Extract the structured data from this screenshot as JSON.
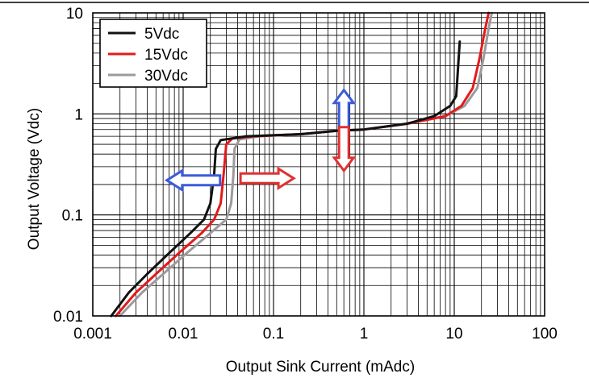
{
  "chart_data": {
    "type": "line",
    "xlabel": "Output Sink Current (mAdc)",
    "ylabel": "Output Voltage (Vdc)",
    "x_scale": "log",
    "y_scale": "log",
    "xlim": [
      0.001,
      100
    ],
    "ylim": [
      0.01,
      10
    ],
    "x_ticks": [
      {
        "value": 0.001,
        "label": "0.001"
      },
      {
        "value": 0.01,
        "label": "0.01"
      },
      {
        "value": 0.1,
        "label": "0.1"
      },
      {
        "value": 1,
        "label": "1"
      },
      {
        "value": 10,
        "label": "10"
      },
      {
        "value": 100,
        "label": "100"
      }
    ],
    "y_ticks": [
      {
        "value": 0.01,
        "label": "0.01"
      },
      {
        "value": 0.1,
        "label": "0.1"
      },
      {
        "value": 1,
        "label": "1"
      },
      {
        "value": 10,
        "label": "10"
      }
    ],
    "grid": true,
    "legend_position": "top-left",
    "series": [
      {
        "name": "5Vdc",
        "color": "#111111",
        "points": [
          [
            0.0016,
            0.01
          ],
          [
            0.0025,
            0.017
          ],
          [
            0.004,
            0.026
          ],
          [
            0.007,
            0.042
          ],
          [
            0.012,
            0.066
          ],
          [
            0.017,
            0.09
          ],
          [
            0.02,
            0.13
          ],
          [
            0.022,
            0.25
          ],
          [
            0.023,
            0.45
          ],
          [
            0.026,
            0.55
          ],
          [
            0.05,
            0.6
          ],
          [
            0.2,
            0.63
          ],
          [
            0.5,
            0.68
          ],
          [
            1,
            0.7
          ],
          [
            3,
            0.8
          ],
          [
            6,
            0.95
          ],
          [
            9,
            1.2
          ],
          [
            10.5,
            1.5
          ],
          [
            11.5,
            5.2
          ]
        ]
      },
      {
        "name": "15Vdc",
        "color": "#e31a1c",
        "points": [
          [
            0.0018,
            0.01
          ],
          [
            0.003,
            0.017
          ],
          [
            0.005,
            0.026
          ],
          [
            0.009,
            0.042
          ],
          [
            0.016,
            0.066
          ],
          [
            0.022,
            0.09
          ],
          [
            0.026,
            0.13
          ],
          [
            0.028,
            0.25
          ],
          [
            0.03,
            0.5
          ],
          [
            0.035,
            0.57
          ],
          [
            0.06,
            0.6
          ],
          [
            0.2,
            0.63
          ],
          [
            0.5,
            0.68
          ],
          [
            1,
            0.7
          ],
          [
            3,
            0.8
          ],
          [
            8,
            0.95
          ],
          [
            12,
            1.2
          ],
          [
            16,
            1.8
          ],
          [
            19,
            3.5
          ],
          [
            22,
            7
          ],
          [
            24,
            10
          ]
        ]
      },
      {
        "name": "30Vdc",
        "color": "#9b9b9b",
        "points": [
          [
            0.002,
            0.01
          ],
          [
            0.0035,
            0.017
          ],
          [
            0.006,
            0.026
          ],
          [
            0.011,
            0.042
          ],
          [
            0.02,
            0.066
          ],
          [
            0.03,
            0.09
          ],
          [
            0.034,
            0.13
          ],
          [
            0.036,
            0.25
          ],
          [
            0.037,
            0.45
          ],
          [
            0.042,
            0.56
          ],
          [
            0.07,
            0.6
          ],
          [
            0.2,
            0.63
          ],
          [
            0.5,
            0.68
          ],
          [
            1,
            0.7
          ],
          [
            3,
            0.8
          ],
          [
            8,
            0.95
          ],
          [
            13,
            1.2
          ],
          [
            18,
            1.8
          ],
          [
            21,
            3.5
          ],
          [
            24,
            7
          ],
          [
            26,
            10
          ]
        ]
      }
    ],
    "annotations": [
      {
        "type": "arrow",
        "direction": "left",
        "color": "#3b5bdb",
        "at": [
          0.013,
          0.22
        ]
      },
      {
        "type": "arrow",
        "direction": "right",
        "color": "#e03131",
        "at": [
          0.085,
          0.23
        ]
      },
      {
        "type": "arrow",
        "direction": "up",
        "color": "#3b5bdb",
        "at": [
          0.6,
          1.05
        ]
      },
      {
        "type": "arrow",
        "direction": "down",
        "color": "#e03131",
        "at": [
          0.6,
          0.45
        ]
      }
    ]
  }
}
